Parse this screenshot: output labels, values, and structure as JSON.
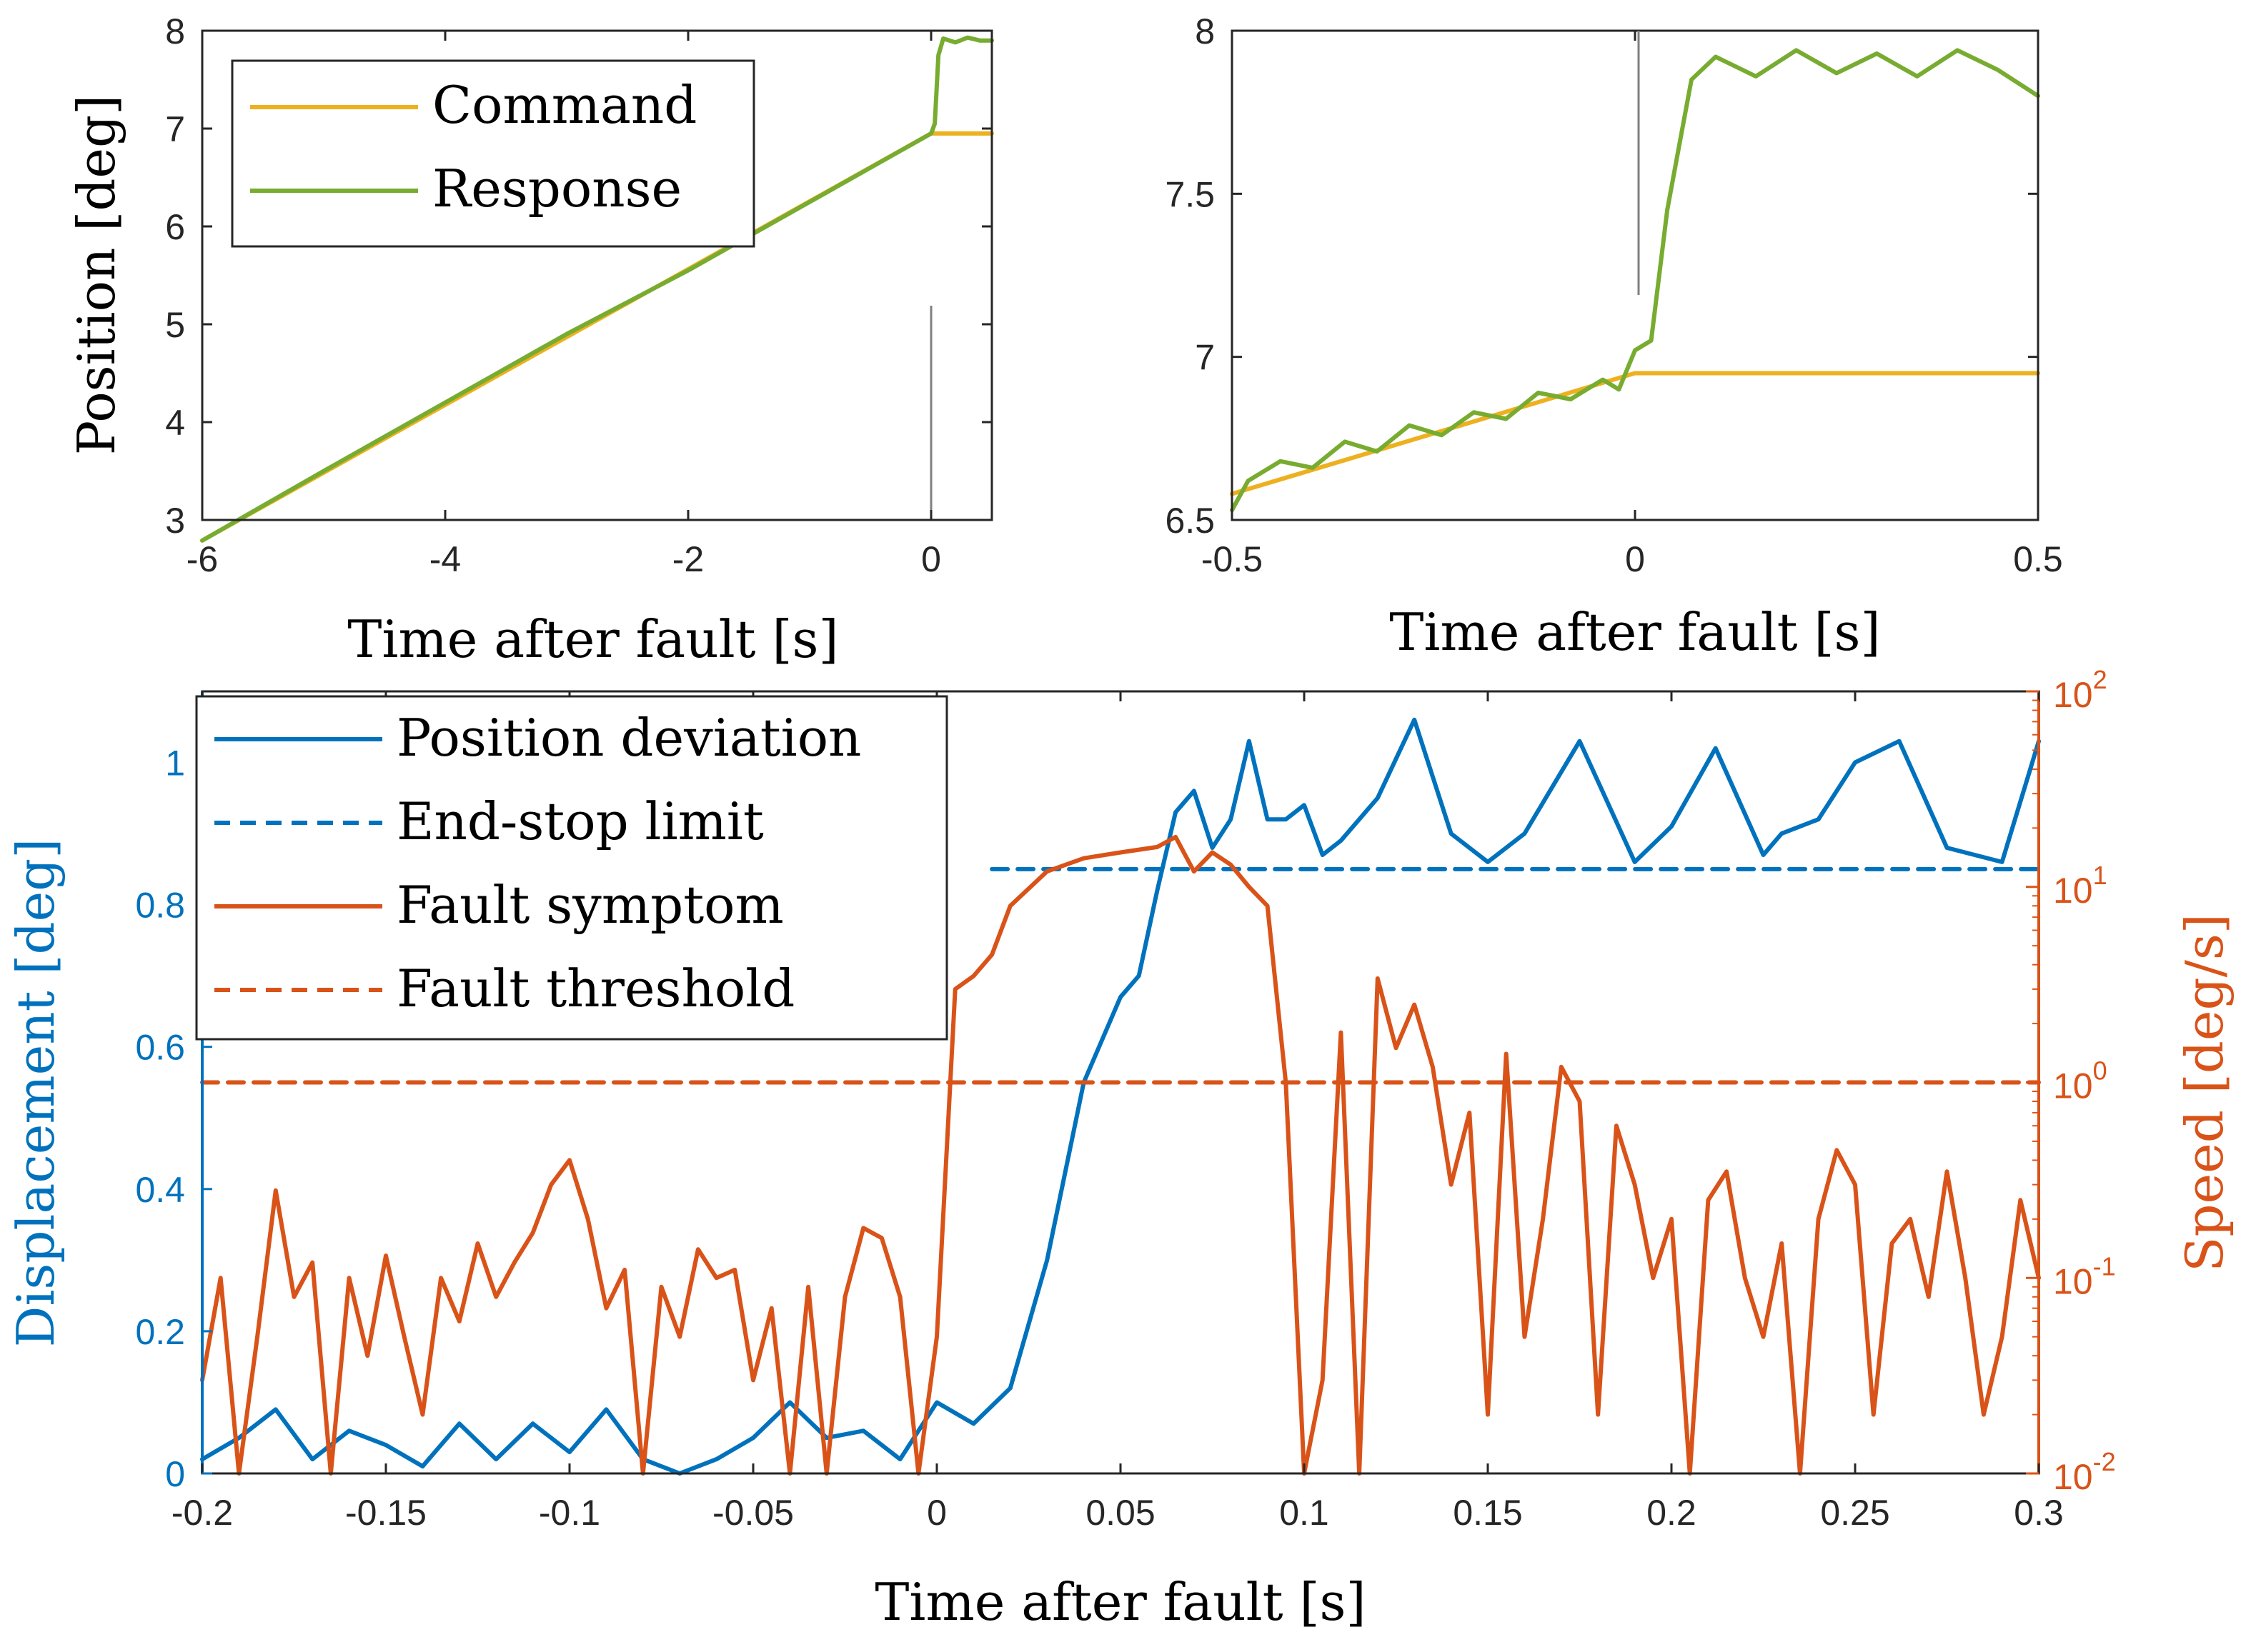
{
  "colors": {
    "command": "#EDB120",
    "response": "#77AC30",
    "blue": "#0072BD",
    "orange": "#D95319",
    "axis": "#262626",
    "grey": "#808080"
  },
  "chart_data": [
    {
      "id": "top-left",
      "type": "line",
      "xlabel": "Time after fault [s]",
      "ylabel": "Position [deg]",
      "xlim": [
        -6,
        0.5
      ],
      "ylim": [
        3,
        8
      ],
      "xticks": [
        -6,
        -4,
        -2,
        0
      ],
      "xtick_labels": [
        "-6",
        "-4",
        "-2",
        "0"
      ],
      "yticks": [
        3,
        4,
        5,
        6,
        7,
        8
      ],
      "ytick_labels": [
        "3",
        "4",
        "5",
        "6",
        "7",
        "8"
      ],
      "legend_position": "top-left",
      "fault_marker": {
        "x": 0,
        "y_from": 3,
        "y_to": 5.2
      },
      "series": [
        {
          "name": "Command",
          "color": "#EDB120",
          "x": [
            -6,
            0,
            0.5
          ],
          "y": [
            2.79,
            6.95,
            6.95
          ]
        },
        {
          "name": "Response",
          "color": "#77AC30",
          "x": [
            -6,
            -5,
            -4,
            -3,
            -2,
            -1,
            0,
            0.03,
            0.06,
            0.1,
            0.2,
            0.3,
            0.4,
            0.5
          ],
          "y": [
            2.79,
            3.5,
            4.2,
            4.9,
            5.55,
            6.25,
            6.95,
            7.05,
            7.75,
            7.92,
            7.88,
            7.93,
            7.9,
            7.9
          ]
        }
      ]
    },
    {
      "id": "top-right",
      "type": "line",
      "xlabel": "Time after fault [s]",
      "ylabel": "",
      "xlim": [
        -0.5,
        0.5
      ],
      "ylim": [
        6.5,
        8
      ],
      "xticks": [
        -0.5,
        0,
        0.5
      ],
      "xtick_labels": [
        "-0.5",
        "0",
        "0.5"
      ],
      "yticks": [
        6.5,
        7,
        7.5,
        8
      ],
      "ytick_labels": [
        "6.5",
        "7",
        "7.5",
        "8"
      ],
      "fault_marker": {
        "x": 0,
        "y_from": 7.18,
        "y_to": 8
      },
      "series": [
        {
          "name": "Command",
          "color": "#EDB120",
          "x": [
            -0.5,
            0,
            0.5
          ],
          "y": [
            6.58,
            6.95,
            6.95
          ]
        },
        {
          "name": "Response",
          "color": "#77AC30",
          "x": [
            -0.5,
            -0.48,
            -0.44,
            -0.4,
            -0.36,
            -0.32,
            -0.28,
            -0.24,
            -0.2,
            -0.16,
            -0.12,
            -0.08,
            -0.04,
            -0.02,
            0.0,
            0.02,
            0.04,
            0.055,
            0.07,
            0.1,
            0.15,
            0.2,
            0.25,
            0.3,
            0.35,
            0.4,
            0.45,
            0.5
          ],
          "y": [
            6.53,
            6.62,
            6.68,
            6.66,
            6.74,
            6.71,
            6.79,
            6.76,
            6.83,
            6.81,
            6.89,
            6.87,
            6.93,
            6.9,
            7.02,
            7.05,
            7.45,
            7.65,
            7.85,
            7.92,
            7.86,
            7.94,
            7.87,
            7.93,
            7.86,
            7.94,
            7.88,
            7.8
          ]
        }
      ]
    },
    {
      "id": "bottom",
      "type": "line",
      "xlabel": "Time after fault [s]",
      "ylabel_left": "Displacement [deg]",
      "ylabel_right": "Speed [deg/s]",
      "xlim": [
        -0.2,
        0.3
      ],
      "ylim_left": [
        0,
        1.1
      ],
      "ylim_right": [
        0.01,
        100
      ],
      "yscale_right": "log",
      "xticks": [
        -0.2,
        -0.15,
        -0.1,
        -0.05,
        0,
        0.05,
        0.1,
        0.15,
        0.2,
        0.25,
        0.3
      ],
      "xtick_labels": [
        "-0.2",
        "-0.15",
        "-0.1",
        "-0.05",
        "0",
        "0.05",
        "0.1",
        "0.15",
        "0.2",
        "0.25",
        "0.3"
      ],
      "yticks_left": [
        0,
        0.2,
        0.4,
        0.6,
        0.8,
        1
      ],
      "ytick_labels_left": [
        "0",
        "0.2",
        "0.4",
        "0.6",
        "0.8",
        "1"
      ],
      "yticks_right": [
        0.01,
        0.1,
        1,
        10,
        100
      ],
      "ytick_labels_right": [
        {
          "base": "10",
          "exp": "-2"
        },
        {
          "base": "10",
          "exp": "-1"
        },
        {
          "base": "10",
          "exp": "0"
        },
        {
          "base": "10",
          "exp": "1"
        },
        {
          "base": "10",
          "exp": "2"
        }
      ],
      "legend_position": "top-left",
      "series": [
        {
          "name": "Position deviation",
          "color": "#0072BD",
          "axis": "left",
          "style": "solid",
          "x": [
            -0.2,
            -0.19,
            -0.18,
            -0.17,
            -0.16,
            -0.15,
            -0.14,
            -0.13,
            -0.12,
            -0.11,
            -0.1,
            -0.09,
            -0.08,
            -0.07,
            -0.06,
            -0.05,
            -0.04,
            -0.03,
            -0.02,
            -0.01,
            0.0,
            0.01,
            0.02,
            0.03,
            0.04,
            0.05,
            0.055,
            0.06,
            0.065,
            0.07,
            0.075,
            0.08,
            0.085,
            0.09,
            0.095,
            0.1,
            0.105,
            0.11,
            0.12,
            0.13,
            0.14,
            0.15,
            0.155,
            0.16,
            0.175,
            0.19,
            0.2,
            0.212,
            0.225,
            0.23,
            0.24,
            0.25,
            0.262,
            0.275,
            0.29,
            0.3
          ],
          "y": [
            0.02,
            0.05,
            0.09,
            0.02,
            0.06,
            0.04,
            0.01,
            0.07,
            0.02,
            0.07,
            0.03,
            0.09,
            0.02,
            0.0,
            0.02,
            0.05,
            0.1,
            0.05,
            0.06,
            0.02,
            0.1,
            0.07,
            0.12,
            0.3,
            0.55,
            0.67,
            0.7,
            0.82,
            0.93,
            0.96,
            0.88,
            0.92,
            1.03,
            0.92,
            0.92,
            0.94,
            0.87,
            0.89,
            0.95,
            1.06,
            0.9,
            0.86,
            0.88,
            0.9,
            1.03,
            0.86,
            0.91,
            1.02,
            0.87,
            0.9,
            0.92,
            1.0,
            1.03,
            0.88,
            0.86,
            1.03
          ]
        },
        {
          "name": "End-stop limit",
          "color": "#0072BD",
          "axis": "left",
          "style": "dashed",
          "x": [
            0.015,
            0.3
          ],
          "y": [
            0.85,
            0.85
          ]
        },
        {
          "name": "Fault symptom",
          "color": "#D95319",
          "axis": "right",
          "style": "solid",
          "x": [
            -0.2,
            -0.195,
            -0.19,
            -0.185,
            -0.18,
            -0.175,
            -0.17,
            -0.165,
            -0.16,
            -0.155,
            -0.15,
            -0.145,
            -0.14,
            -0.135,
            -0.13,
            -0.125,
            -0.12,
            -0.115,
            -0.11,
            -0.105,
            -0.1,
            -0.095,
            -0.09,
            -0.085,
            -0.08,
            -0.075,
            -0.07,
            -0.065,
            -0.06,
            -0.055,
            -0.05,
            -0.045,
            -0.04,
            -0.035,
            -0.03,
            -0.025,
            -0.02,
            -0.015,
            -0.01,
            -0.005,
            0.0,
            0.005,
            0.01,
            0.015,
            0.02,
            0.03,
            0.04,
            0.05,
            0.06,
            0.065,
            0.07,
            0.075,
            0.08,
            0.085,
            0.09,
            0.095,
            0.1,
            0.105,
            0.11,
            0.115,
            0.12,
            0.125,
            0.13,
            0.135,
            0.14,
            0.145,
            0.15,
            0.155,
            0.16,
            0.165,
            0.17,
            0.175,
            0.18,
            0.185,
            0.19,
            0.195,
            0.2,
            0.205,
            0.21,
            0.215,
            0.22,
            0.225,
            0.23,
            0.235,
            0.24,
            0.245,
            0.25,
            0.255,
            0.26,
            0.265,
            0.27,
            0.275,
            0.28,
            0.285,
            0.29,
            0.295,
            0.3
          ],
          "y": [
            0.03,
            0.1,
            0.01,
            0.05,
            0.28,
            0.08,
            0.12,
            0.01,
            0.1,
            0.04,
            0.13,
            0.05,
            0.02,
            0.1,
            0.06,
            0.15,
            0.08,
            0.12,
            0.17,
            0.3,
            0.4,
            0.2,
            0.07,
            0.11,
            0.01,
            0.09,
            0.05,
            0.14,
            0.1,
            0.11,
            0.03,
            0.07,
            0.01,
            0.09,
            0.01,
            0.08,
            0.18,
            0.16,
            0.08,
            0.01,
            0.05,
            3.0,
            3.5,
            4.5,
            8.0,
            12.0,
            14.0,
            15.0,
            16.0,
            18.0,
            12.0,
            15.0,
            13.0,
            10.0,
            8.0,
            1.0,
            0.01,
            0.03,
            1.8,
            0.01,
            3.4,
            1.5,
            2.5,
            1.2,
            0.3,
            0.7,
            0.02,
            1.4,
            0.05,
            0.2,
            1.2,
            0.8,
            0.02,
            0.6,
            0.3,
            0.1,
            0.2,
            0.01,
            0.25,
            0.35,
            0.1,
            0.05,
            0.15,
            0.01,
            0.2,
            0.45,
            0.3,
            0.02,
            0.15,
            0.2,
            0.08,
            0.35,
            0.1,
            0.02,
            0.05,
            0.25,
            0.1
          ]
        },
        {
          "name": "Fault threshold",
          "color": "#D95319",
          "axis": "right",
          "style": "dashed",
          "x": [
            -0.2,
            0.3
          ],
          "y": [
            1.0,
            1.0
          ]
        }
      ]
    }
  ]
}
